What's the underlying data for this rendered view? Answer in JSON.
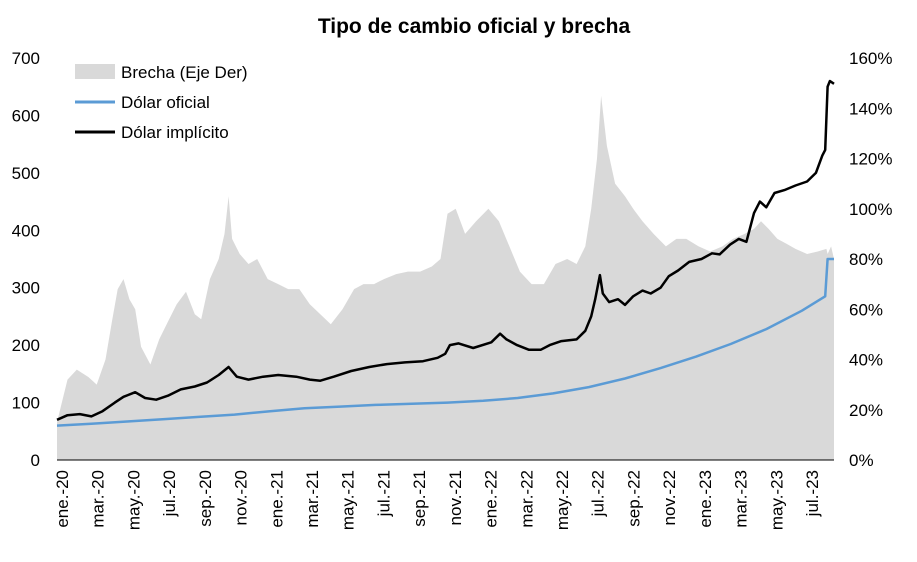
{
  "chart_data": {
    "type": "line",
    "title": "Tipo de cambio oficial y brecha",
    "x_ticks": [
      "ene.-20",
      "mar.-20",
      "may.-20",
      "jul.-20",
      "sep.-20",
      "nov.-20",
      "ene.-21",
      "mar.-21",
      "may.-21",
      "jul.-21",
      "sep.-21",
      "nov.-21",
      "ene.-22",
      "mar.-22",
      "may.-22",
      "jul.-22",
      "sep.-22",
      "nov.-22",
      "ene.-23",
      "mar.-23",
      "may.-23",
      "jul.-23"
    ],
    "y_left": {
      "ticks": [
        "0",
        "100",
        "200",
        "300",
        "400",
        "500",
        "600",
        "700"
      ],
      "ylim": [
        0,
        700
      ]
    },
    "y_right": {
      "ticks": [
        "0%",
        "20%",
        "40%",
        "60%",
        "80%",
        "100%",
        "120%",
        "140%",
        "160%"
      ],
      "ylim": [
        0,
        160
      ]
    },
    "legend": {
      "position": "top-left",
      "items": [
        "Brecha (Eje Der)",
        "Dólar oficial",
        "Dólar implícito"
      ]
    },
    "colors": {
      "brecha": "#d9d9d9",
      "oficial": "#5b9bd5",
      "implicito": "#000000"
    },
    "series": [
      {
        "name": "Brecha (Eje Der)",
        "axis": "right",
        "kind": "area",
        "points": [
          [
            "2020-01-02",
            15
          ],
          [
            "2020-01-20",
            32
          ],
          [
            "2020-02-05",
            36
          ],
          [
            "2020-02-25",
            33
          ],
          [
            "2020-03-10",
            30
          ],
          [
            "2020-03-25",
            40
          ],
          [
            "2020-04-05",
            55
          ],
          [
            "2020-04-15",
            68
          ],
          [
            "2020-04-25",
            72
          ],
          [
            "2020-05-05",
            64
          ],
          [
            "2020-05-15",
            60
          ],
          [
            "2020-05-25",
            45
          ],
          [
            "2020-06-10",
            38
          ],
          [
            "2020-06-25",
            48
          ],
          [
            "2020-07-10",
            55
          ],
          [
            "2020-07-25",
            62
          ],
          [
            "2020-08-10",
            67
          ],
          [
            "2020-08-25",
            58
          ],
          [
            "2020-09-05",
            56
          ],
          [
            "2020-09-20",
            72
          ],
          [
            "2020-10-05",
            80
          ],
          [
            "2020-10-15",
            90
          ],
          [
            "2020-10-22",
            105
          ],
          [
            "2020-10-28",
            88
          ],
          [
            "2020-11-10",
            82
          ],
          [
            "2020-11-25",
            78
          ],
          [
            "2020-12-10",
            80
          ],
          [
            "2020-12-28",
            72
          ],
          [
            "2021-01-15",
            70
          ],
          [
            "2021-02-01",
            68
          ],
          [
            "2021-02-20",
            68
          ],
          [
            "2021-03-10",
            62
          ],
          [
            "2021-03-28",
            58
          ],
          [
            "2021-04-15",
            54
          ],
          [
            "2021-05-05",
            60
          ],
          [
            "2021-05-25",
            68
          ],
          [
            "2021-06-10",
            70
          ],
          [
            "2021-06-28",
            70
          ],
          [
            "2021-07-15",
            72
          ],
          [
            "2021-08-05",
            74
          ],
          [
            "2021-08-25",
            75
          ],
          [
            "2021-09-15",
            75
          ],
          [
            "2021-10-05",
            77
          ],
          [
            "2021-10-20",
            80
          ],
          [
            "2021-11-01",
            98
          ],
          [
            "2021-11-15",
            100
          ],
          [
            "2021-12-01",
            90
          ],
          [
            "2021-12-20",
            95
          ],
          [
            "2022-01-10",
            100
          ],
          [
            "2022-01-28",
            95
          ],
          [
            "2022-02-15",
            85
          ],
          [
            "2022-03-05",
            75
          ],
          [
            "2022-03-25",
            70
          ],
          [
            "2022-04-15",
            70
          ],
          [
            "2022-05-05",
            78
          ],
          [
            "2022-05-25",
            80
          ],
          [
            "2022-06-10",
            78
          ],
          [
            "2022-06-25",
            85
          ],
          [
            "2022-07-05",
            100
          ],
          [
            "2022-07-15",
            120
          ],
          [
            "2022-07-22",
            145
          ],
          [
            "2022-08-01",
            125
          ],
          [
            "2022-08-15",
            110
          ],
          [
            "2022-09-01",
            105
          ],
          [
            "2022-09-15",
            100
          ],
          [
            "2022-10-01",
            95
          ],
          [
            "2022-10-20",
            90
          ],
          [
            "2022-11-10",
            85
          ],
          [
            "2022-11-28",
            88
          ],
          [
            "2022-12-15",
            88
          ],
          [
            "2023-01-05",
            85
          ],
          [
            "2023-01-25",
            83
          ],
          [
            "2023-02-15",
            85
          ],
          [
            "2023-03-05",
            88
          ],
          [
            "2023-03-25",
            90
          ],
          [
            "2023-04-10",
            92
          ],
          [
            "2023-04-22",
            95
          ],
          [
            "2023-05-05",
            92
          ],
          [
            "2023-05-20",
            88
          ],
          [
            "2023-06-05",
            86
          ],
          [
            "2023-06-20",
            84
          ],
          [
            "2023-07-10",
            82
          ],
          [
            "2023-07-28",
            83
          ],
          [
            "2023-08-12",
            84
          ],
          [
            "2023-08-14",
            82
          ],
          [
            "2023-08-20",
            85
          ],
          [
            "2023-08-25",
            80
          ]
        ]
      },
      {
        "name": "Dólar oficial",
        "axis": "left",
        "kind": "line",
        "points": [
          [
            "2020-01-02",
            59.9
          ],
          [
            "2020-03-01",
            63
          ],
          [
            "2020-05-01",
            67
          ],
          [
            "2020-07-01",
            71
          ],
          [
            "2020-09-01",
            75
          ],
          [
            "2020-11-01",
            79
          ],
          [
            "2021-01-01",
            85
          ],
          [
            "2021-03-01",
            90
          ],
          [
            "2021-05-01",
            93
          ],
          [
            "2021-07-01",
            96
          ],
          [
            "2021-09-01",
            98
          ],
          [
            "2021-11-01",
            100
          ],
          [
            "2022-01-01",
            103
          ],
          [
            "2022-03-01",
            108
          ],
          [
            "2022-05-01",
            116
          ],
          [
            "2022-07-01",
            127
          ],
          [
            "2022-09-01",
            142
          ],
          [
            "2022-11-01",
            160
          ],
          [
            "2023-01-01",
            180
          ],
          [
            "2023-03-01",
            202
          ],
          [
            "2023-05-01",
            228
          ],
          [
            "2023-07-01",
            260
          ],
          [
            "2023-08-10",
            285
          ],
          [
            "2023-08-14",
            350
          ],
          [
            "2023-08-25",
            350
          ]
        ]
      },
      {
        "name": "Dólar implícito",
        "axis": "left",
        "kind": "line",
        "points": [
          [
            "2020-01-02",
            70
          ],
          [
            "2020-01-20",
            78
          ],
          [
            "2020-02-10",
            80
          ],
          [
            "2020-03-01",
            76
          ],
          [
            "2020-03-20",
            85
          ],
          [
            "2020-04-10",
            100
          ],
          [
            "2020-04-25",
            110
          ],
          [
            "2020-05-15",
            118
          ],
          [
            "2020-06-01",
            108
          ],
          [
            "2020-06-20",
            105
          ],
          [
            "2020-07-10",
            112
          ],
          [
            "2020-08-01",
            123
          ],
          [
            "2020-08-25",
            128
          ],
          [
            "2020-09-15",
            135
          ],
          [
            "2020-10-05",
            148
          ],
          [
            "2020-10-22",
            162
          ],
          [
            "2020-11-05",
            145
          ],
          [
            "2020-11-25",
            140
          ],
          [
            "2020-12-20",
            145
          ],
          [
            "2021-01-15",
            148
          ],
          [
            "2021-02-15",
            145
          ],
          [
            "2021-03-10",
            140
          ],
          [
            "2021-03-28",
            138
          ],
          [
            "2021-04-20",
            145
          ],
          [
            "2021-05-20",
            155
          ],
          [
            "2021-06-20",
            162
          ],
          [
            "2021-07-20",
            167
          ],
          [
            "2021-08-20",
            170
          ],
          [
            "2021-09-20",
            172
          ],
          [
            "2021-10-15",
            178
          ],
          [
            "2021-10-28",
            185
          ],
          [
            "2021-11-05",
            200
          ],
          [
            "2021-11-20",
            203
          ],
          [
            "2021-12-15",
            195
          ],
          [
            "2022-01-15",
            205
          ],
          [
            "2022-01-30",
            220
          ],
          [
            "2022-02-10",
            210
          ],
          [
            "2022-02-28",
            200
          ],
          [
            "2022-03-20",
            192
          ],
          [
            "2022-04-10",
            192
          ],
          [
            "2022-04-25",
            200
          ],
          [
            "2022-05-15",
            207
          ],
          [
            "2022-06-10",
            210
          ],
          [
            "2022-06-25",
            225
          ],
          [
            "2022-07-05",
            250
          ],
          [
            "2022-07-12",
            280
          ],
          [
            "2022-07-20",
            322
          ],
          [
            "2022-07-25",
            290
          ],
          [
            "2022-08-05",
            275
          ],
          [
            "2022-08-20",
            280
          ],
          [
            "2022-09-01",
            270
          ],
          [
            "2022-09-15",
            285
          ],
          [
            "2022-10-01",
            295
          ],
          [
            "2022-10-15",
            290
          ],
          [
            "2022-11-01",
            300
          ],
          [
            "2022-11-15",
            320
          ],
          [
            "2022-12-01",
            330
          ],
          [
            "2022-12-20",
            345
          ],
          [
            "2023-01-10",
            350
          ],
          [
            "2023-01-28",
            360
          ],
          [
            "2023-02-10",
            358
          ],
          [
            "2023-02-28",
            375
          ],
          [
            "2023-03-15",
            385
          ],
          [
            "2023-03-28",
            380
          ],
          [
            "2023-04-10",
            430
          ],
          [
            "2023-04-20",
            450
          ],
          [
            "2023-05-01",
            440
          ],
          [
            "2023-05-15",
            465
          ],
          [
            "2023-06-01",
            470
          ],
          [
            "2023-06-20",
            478
          ],
          [
            "2023-07-10",
            485
          ],
          [
            "2023-07-25",
            500
          ],
          [
            "2023-08-05",
            530
          ],
          [
            "2023-08-10",
            540
          ],
          [
            "2023-08-14",
            650
          ],
          [
            "2023-08-18",
            660
          ],
          [
            "2023-08-25",
            655
          ]
        ]
      }
    ]
  }
}
